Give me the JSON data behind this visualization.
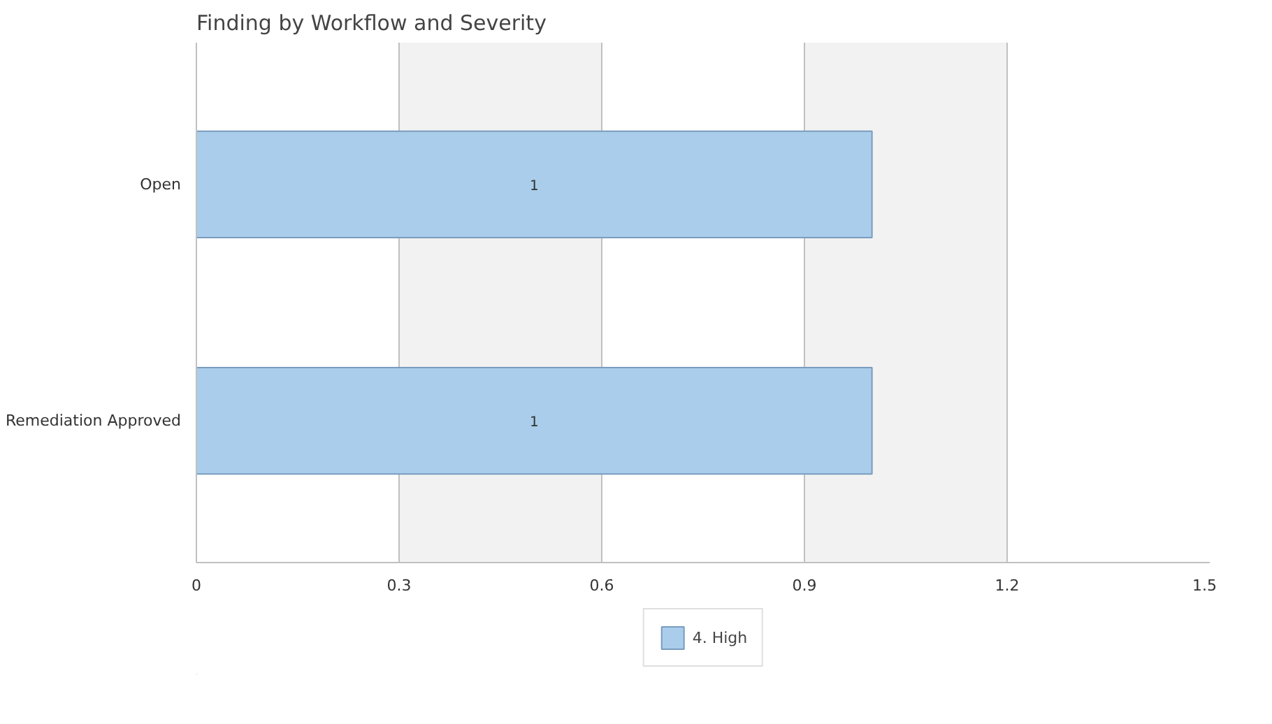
{
  "chart_data": {
    "type": "bar",
    "title": "Finding by Workflow and Severity",
    "orientation": "horizontal",
    "categories": [
      "Open",
      "Remediation Approved"
    ],
    "series": [
      {
        "name": "4. High",
        "color": "#a9cdea",
        "values": [
          1,
          1
        ]
      }
    ],
    "xlim": [
      0,
      1.5
    ],
    "xticks": [
      0,
      0.3,
      0.6,
      0.9,
      1.2,
      1.5
    ],
    "grid": "x",
    "legend": "bottom",
    "data_labels": true
  }
}
